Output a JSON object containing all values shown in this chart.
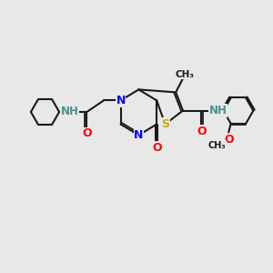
{
  "bg_color": "#e8e8e8",
  "bond_color": "#1a1a1a",
  "bond_width": 1.5,
  "atom_colors": {
    "N": "#0000ff",
    "O": "#ff0000",
    "S": "#ccaa00",
    "NH": "#4a9090",
    "C": "#1a1a1a"
  }
}
